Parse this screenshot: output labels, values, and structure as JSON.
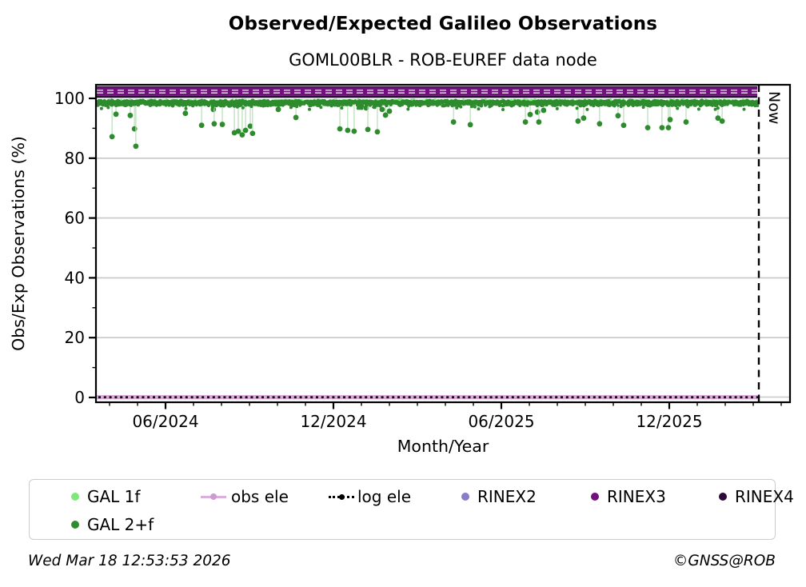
{
  "header": {
    "title": "Observed/Expected Galileo Observations",
    "subtitle": "GOML00BLR - ROB-EUREF data node"
  },
  "chart_data": {
    "type": "scatter",
    "title": "Observed/Expected Galileo Observations",
    "subtitle": "GOML00BLR - ROB-EUREF data node",
    "xlabel": "Month/Year",
    "ylabel": "Obs/Exp Observations (%)",
    "x_range": [
      "2024-03-15",
      "2026-04-20"
    ],
    "x_ticks": [
      "06/2024",
      "12/2024",
      "06/2025",
      "12/2025"
    ],
    "x_minor_ticks": "monthly",
    "y_ticks": [
      0,
      20,
      40,
      60,
      80,
      100
    ],
    "y_minor_ticks": [
      10,
      30,
      50,
      70,
      90
    ],
    "ylim": [
      -1.5,
      104.5
    ],
    "grid": "horizontal light-gray lines at 20/40/60/80",
    "now_line": {
      "label": "Now",
      "date": "2026-03-18",
      "style": "black dashed vertical"
    },
    "series": [
      {
        "name": "GAL 1f",
        "color": "#7ce87c",
        "type": "scatter",
        "description": "constant ~99.8%, mostly hidden behind GAL 2+f band"
      },
      {
        "name": "GAL 2+f",
        "color": "#2e8b2e",
        "type": "scatter",
        "band": {
          "min_pct": 96.5,
          "max_pct": 99.8,
          "coverage": "daily points from 2024-03 to Now"
        },
        "dips_format": [
          "months_after_2024_06",
          "percent"
        ],
        "dips": [
          [
            -1.91,
            87.2
          ],
          [
            -1.77,
            94.7
          ],
          [
            -1.26,
            94.3
          ],
          [
            -1.11,
            89.8
          ],
          [
            -1.06,
            84.0
          ],
          [
            0.71,
            95.0
          ],
          [
            1.29,
            91.0
          ],
          [
            1.71,
            96.3
          ],
          [
            1.74,
            91.5
          ],
          [
            2.03,
            91.3
          ],
          [
            2.46,
            88.5
          ],
          [
            2.6,
            89.0
          ],
          [
            2.74,
            87.8
          ],
          [
            2.86,
            89.3
          ],
          [
            3.03,
            90.7
          ],
          [
            3.11,
            88.3
          ],
          [
            4.03,
            96.3
          ],
          [
            4.66,
            93.6
          ],
          [
            6.23,
            89.8
          ],
          [
            6.51,
            89.3
          ],
          [
            6.74,
            89.0
          ],
          [
            7.17,
            96.8
          ],
          [
            7.23,
            89.6
          ],
          [
            7.57,
            88.8
          ],
          [
            7.74,
            96.3
          ],
          [
            7.86,
            94.4
          ],
          [
            8.0,
            95.7
          ],
          [
            10.29,
            92.1
          ],
          [
            10.89,
            91.2
          ],
          [
            12.86,
            92.1
          ],
          [
            13.03,
            94.6
          ],
          [
            13.29,
            95.4
          ],
          [
            13.34,
            92.1
          ],
          [
            13.51,
            96.0
          ],
          [
            14.74,
            92.4
          ],
          [
            14.94,
            93.4
          ],
          [
            15.51,
            91.5
          ],
          [
            16.17,
            94.2
          ],
          [
            16.37,
            91.0
          ],
          [
            17.23,
            90.2
          ],
          [
            17.74,
            90.2
          ],
          [
            17.97,
            90.2
          ],
          [
            18.03,
            92.9
          ],
          [
            18.6,
            92.1
          ],
          [
            19.74,
            93.4
          ],
          [
            19.89,
            92.4
          ]
        ]
      },
      {
        "name": "obs ele",
        "color": "#d9a6d9",
        "type": "line",
        "value_pct": 0
      },
      {
        "name": "log ele",
        "color": "#000000",
        "type": "dotted-line",
        "value_pct": 0
      },
      {
        "name": "RINEX2",
        "color": "#8a7cc8",
        "type": "scatter",
        "value_pct": 103,
        "description": "constant marker row, hidden behind RINEX3 band"
      },
      {
        "name": "RINEX3",
        "color": "#72117d",
        "type": "scatter",
        "value_pct": 102,
        "description": "constant marker row forming solid purple band ~101-103.5%"
      },
      {
        "name": "RINEX4",
        "color": "#2d0a3a",
        "type": "scatter",
        "value_pct": 101,
        "description": "constant dark marker row at bottom edge of purple band"
      }
    ],
    "legend_position": "below chart, two rows"
  },
  "legend": {
    "items": [
      {
        "label": "GAL 1f",
        "color": "#7ce87c",
        "marker": "dot"
      },
      {
        "label": "GAL 2+f",
        "color": "#2e8b2e",
        "marker": "dot"
      },
      {
        "label": "obs ele",
        "color": "#d9a6d9",
        "marker": "line-dot"
      },
      {
        "label": "log ele",
        "color": "#000000",
        "marker": "dotted-line-dot"
      },
      {
        "label": "RINEX2",
        "color": "#8a7cc8",
        "marker": "dot"
      },
      {
        "label": "RINEX3",
        "color": "#72117d",
        "marker": "dot"
      },
      {
        "label": "RINEX4",
        "color": "#2d0a3a",
        "marker": "dot"
      }
    ]
  },
  "now_label": "Now",
  "footer": {
    "timestamp": "Wed Mar 18 12:53:53 2026",
    "copyright": "©GNSS@ROB"
  }
}
